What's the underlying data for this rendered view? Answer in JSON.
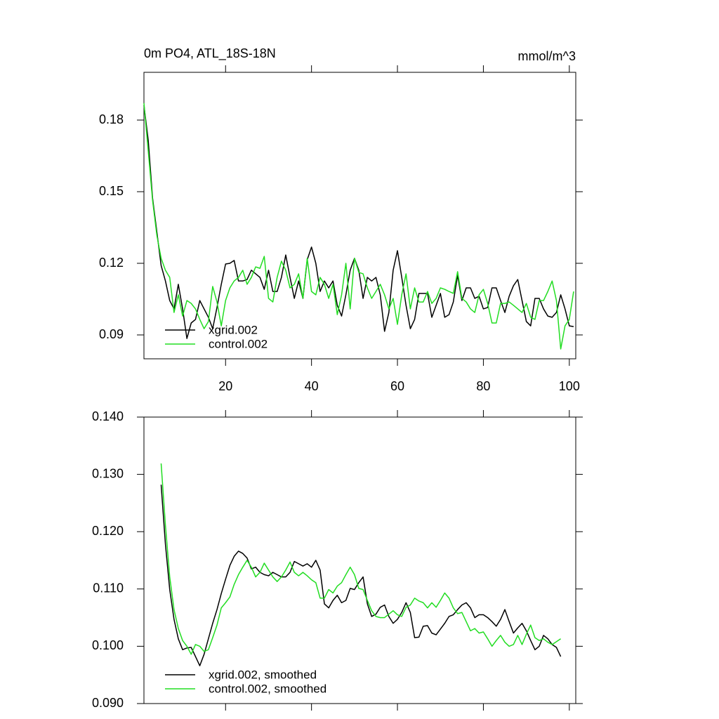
{
  "chart_data": [
    {
      "type": "line",
      "title": "0m PO4, ATL_18S-18N",
      "units": "mmol/m^3",
      "x": [
        1,
        2,
        3,
        4,
        5,
        6,
        7,
        8,
        9,
        10,
        11,
        12,
        13,
        14,
        15,
        16,
        17,
        18,
        19,
        20,
        21,
        22,
        23,
        24,
        25,
        26,
        27,
        28,
        29,
        30,
        31,
        32,
        33,
        34,
        35,
        36,
        37,
        38,
        39,
        40,
        41,
        42,
        43,
        44,
        45,
        46,
        47,
        48,
        49,
        50,
        51,
        52,
        53,
        54,
        55,
        56,
        57,
        58,
        59,
        60,
        61,
        62,
        63,
        64,
        65,
        66,
        67,
        68,
        69,
        70,
        71,
        72,
        73,
        74,
        75,
        76,
        77,
        78,
        79,
        80,
        81,
        82,
        83,
        84,
        85,
        86,
        87,
        88,
        89,
        90,
        91,
        92,
        93,
        94,
        95,
        96,
        97,
        98,
        99,
        100,
        101
      ],
      "series": [
        {
          "name": "xgrid.002",
          "color": "#000000",
          "values": [
            0.1862,
            0.1715,
            0.1474,
            0.1332,
            0.1191,
            0.1126,
            0.1044,
            0.1009,
            0.1112,
            0.1009,
            0.0885,
            0.095,
            0.0965,
            0.1044,
            0.1009,
            0.0974,
            0.0926,
            0.1015,
            0.1112,
            0.1197,
            0.12,
            0.1212,
            0.1126,
            0.1126,
            0.1132,
            0.1171,
            0.1156,
            0.1141,
            0.1091,
            0.1171,
            0.1082,
            0.1082,
            0.1141,
            0.1235,
            0.1141,
            0.1053,
            0.1126,
            0.1053,
            0.1215,
            0.1268,
            0.12,
            0.1082,
            0.1126,
            0.1097,
            0.1126,
            0.1024,
            0.0979,
            0.1068,
            0.1171,
            0.1221,
            0.1171,
            0.1053,
            0.1141,
            0.1126,
            0.1141,
            0.1068,
            0.0915,
            0.0994,
            0.1171,
            0.1253,
            0.1141,
            0.1024,
            0.0926,
            0.0965,
            0.1074,
            0.1074,
            0.1074,
            0.0974,
            0.1024,
            0.1074,
            0.0974,
            0.0985,
            0.1038,
            0.115,
            0.1044,
            0.1097,
            0.1097,
            0.1053,
            0.1062,
            0.1009,
            0.1015,
            0.1097,
            0.1097,
            0.1044,
            0.0994,
            0.1062,
            0.1106,
            0.1132,
            0.1044,
            0.0956,
            0.0938,
            0.1053,
            0.1053,
            0.1009,
            0.0979,
            0.0974,
            0.0994,
            0.1068,
            0.1009,
            0.0938,
            0.0935
          ]
        },
        {
          "name": "control.002",
          "color": "#22dd22",
          "values": [
            0.1871,
            0.1671,
            0.1465,
            0.1318,
            0.1221,
            0.1171,
            0.1141,
            0.0994,
            0.1068,
            0.0979,
            0.1044,
            0.1032,
            0.1009,
            0.0965,
            0.0926,
            0.0956,
            0.1103,
            0.1038,
            0.0938,
            0.1044,
            0.1097,
            0.1126,
            0.1141,
            0.1171,
            0.1112,
            0.1141,
            0.1185,
            0.1179,
            0.1229,
            0.1053,
            0.1038,
            0.1141,
            0.1209,
            0.1171,
            0.1097,
            0.1112,
            0.1156,
            0.1053,
            0.1221,
            0.1082,
            0.1068,
            0.1141,
            0.1112,
            0.1053,
            0.1112,
            0.0985,
            0.1068,
            0.12,
            0.1009,
            0.1221,
            0.1162,
            0.1156,
            0.1097,
            0.1053,
            0.1082,
            0.1112,
            0.1068,
            0.1009,
            0.1053,
            0.0944,
            0.1068,
            0.1156,
            0.1009,
            0.1097,
            0.1038,
            0.1038,
            0.1082,
            0.1032,
            0.1053,
            0.1097,
            0.1091,
            0.1082,
            0.1074,
            0.1165,
            0.1053,
            0.1038,
            0.1009,
            0.0994,
            0.1068,
            0.1091,
            0.1032,
            0.095,
            0.095,
            0.1032,
            0.1032,
            0.1038,
            0.1024,
            0.1009,
            0.0994,
            0.1032,
            0.0974,
            0.0965,
            0.1044,
            0.1044,
            0.1082,
            0.1126,
            0.1044,
            0.0841,
            0.0938,
            0.0965,
            0.1082
          ]
        }
      ],
      "xlim": [
        1,
        101.5
      ],
      "xticks": [
        20,
        40,
        60,
        80,
        100
      ],
      "xtick_labels": true,
      "ylim": [
        0.08,
        0.2
      ],
      "yticks": [
        0.09,
        0.12,
        0.15,
        0.18
      ],
      "legend": "lower left"
    },
    {
      "type": "line",
      "x": [
        5,
        6,
        7,
        8,
        9,
        10,
        11,
        12,
        13,
        14,
        15,
        16,
        17,
        18,
        19,
        20,
        21,
        22,
        23,
        24,
        25,
        26,
        27,
        28,
        29,
        30,
        31,
        32,
        33,
        34,
        35,
        36,
        37,
        38,
        39,
        40,
        41,
        42,
        43,
        44,
        45,
        46,
        47,
        48,
        49,
        50,
        51,
        52,
        53,
        54,
        55,
        56,
        57,
        58,
        59,
        60,
        61,
        62,
        63,
        64,
        65,
        66,
        67,
        68,
        69,
        70,
        71,
        72,
        73,
        74,
        75,
        76,
        77,
        78,
        79,
        80,
        81,
        82,
        83,
        84,
        85,
        86,
        87,
        88,
        89,
        90,
        91,
        92,
        93,
        94,
        95,
        96,
        97,
        98
      ],
      "series": [
        {
          "name": "xgrid.002, smoothed",
          "color": "#000000",
          "values": [
            0.1282,
            0.1178,
            0.1099,
            0.1047,
            0.1013,
            0.0994,
            0.0997,
            0.0998,
            0.0982,
            0.0966,
            0.0986,
            0.1013,
            0.104,
            0.1064,
            0.1092,
            0.1117,
            0.1141,
            0.1157,
            0.1166,
            0.1162,
            0.1154,
            0.1135,
            0.1138,
            0.1129,
            0.1125,
            0.1123,
            0.1129,
            0.1125,
            0.1121,
            0.1121,
            0.1129,
            0.1148,
            0.1144,
            0.114,
            0.1144,
            0.1138,
            0.115,
            0.1133,
            0.1074,
            0.1067,
            0.108,
            0.1089,
            0.1076,
            0.108,
            0.1101,
            0.1099,
            0.1111,
            0.1121,
            0.1074,
            0.1052,
            0.1056,
            0.1068,
            0.1072,
            0.1052,
            0.104,
            0.1047,
            0.1059,
            0.1076,
            0.1059,
            0.1015,
            0.1016,
            0.1035,
            0.1036,
            0.1023,
            0.102,
            0.103,
            0.104,
            0.1052,
            0.1055,
            0.1064,
            0.1072,
            0.1076,
            0.1067,
            0.105,
            0.1055,
            0.1055,
            0.105,
            0.1043,
            0.1035,
            0.1047,
            0.1064,
            0.1043,
            0.1023,
            0.1032,
            0.104,
            0.1027,
            0.101,
            0.0994,
            0.1,
            0.1019,
            0.1013,
            0.1003,
            0.0998,
            0.0982
          ]
        },
        {
          "name": "control.002, smoothed",
          "color": "#22dd22",
          "values": [
            0.1319,
            0.1211,
            0.1121,
            0.1064,
            0.1031,
            0.101,
            0.1,
            0.0986,
            0.1003,
            0.1,
            0.0991,
            0.0994,
            0.1015,
            0.1037,
            0.1067,
            0.1076,
            0.1086,
            0.1108,
            0.1125,
            0.1138,
            0.115,
            0.1138,
            0.1121,
            0.1129,
            0.1145,
            0.1133,
            0.1121,
            0.1113,
            0.1121,
            0.1133,
            0.1147,
            0.1129,
            0.1123,
            0.1129,
            0.1123,
            0.1116,
            0.1111,
            0.1084,
            0.1084,
            0.1099,
            0.1093,
            0.1105,
            0.1111,
            0.1125,
            0.1138,
            0.1125,
            0.1101,
            0.1099,
            0.108,
            0.1062,
            0.1052,
            0.105,
            0.105,
            0.1056,
            0.1062,
            0.1055,
            0.1052,
            0.1068,
            0.1072,
            0.1084,
            0.1079,
            0.1076,
            0.1067,
            0.1076,
            0.1068,
            0.108,
            0.1093,
            0.1084,
            0.1067,
            0.1057,
            0.1059,
            0.1043,
            0.1027,
            0.1031,
            0.1023,
            0.1025,
            0.1013,
            0.1,
            0.101,
            0.1019,
            0.1007,
            0.1,
            0.1003,
            0.1019,
            0.1003,
            0.1021,
            0.1037,
            0.1015,
            0.101,
            0.1013,
            0.1007,
            0.1003,
            0.1008,
            0.1013
          ]
        }
      ],
      "xlim": [
        1,
        101.5
      ],
      "xticks": [
        20,
        40,
        60,
        80,
        100
      ],
      "xtick_labels": false,
      "ylim": [
        0.09,
        0.14
      ],
      "yticks": [
        {
          "value": 0.09,
          "label": "0.090"
        },
        {
          "value": 0.1,
          "label": "0.100"
        },
        {
          "value": 0.11,
          "label": "0.110"
        },
        {
          "value": 0.12,
          "label": "0.120"
        },
        {
          "value": 0.13,
          "label": "0.130"
        },
        {
          "value": 0.14,
          "label": "0.140"
        }
      ],
      "legend": "lower left"
    }
  ]
}
